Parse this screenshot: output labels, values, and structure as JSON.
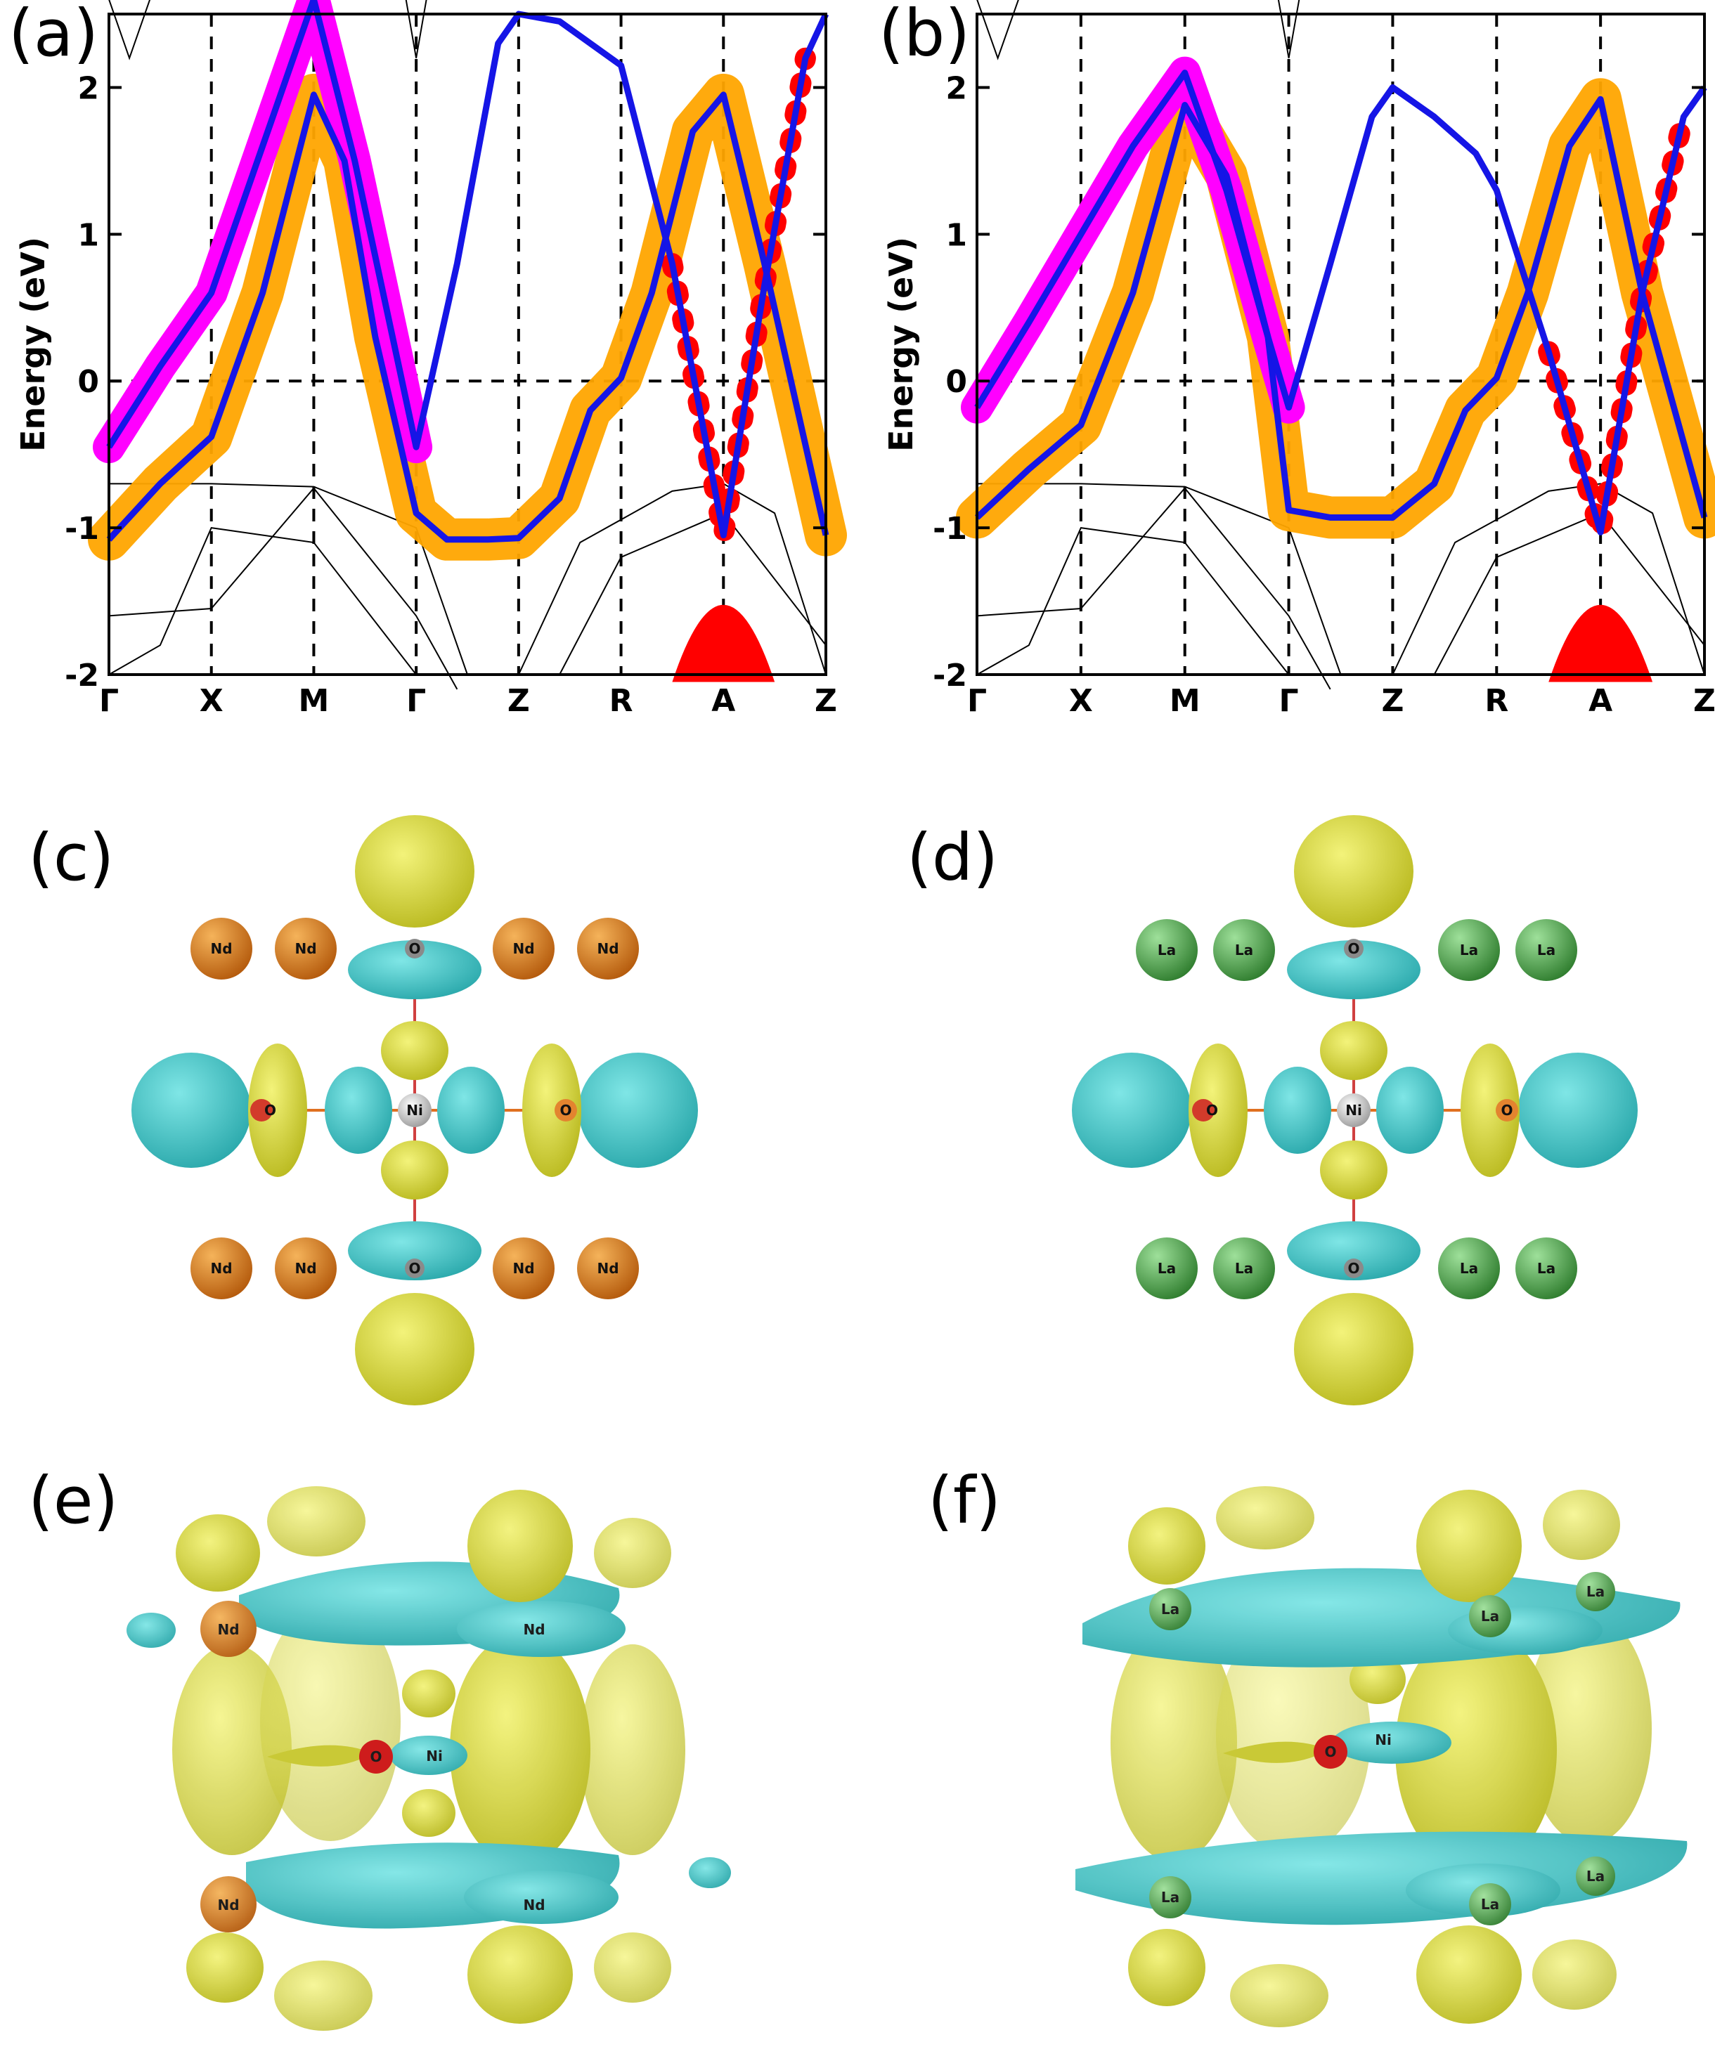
{
  "panels": {
    "a": "(a)",
    "b": "(b)",
    "c": "(c)",
    "d": "(d)",
    "e": "(e)",
    "f": "(f)"
  },
  "colors": {
    "blue": "#1515e6",
    "orange": "#ffa500",
    "magenta": "#ff00ff",
    "red": "#ff0000",
    "yellow": "#d8d835",
    "cyan": "#3fc7c9",
    "nd": "#c56a12",
    "la": "#3c8f3a"
  },
  "chart_data": [
    {
      "type": "line",
      "panel": "a",
      "ylabel": "Energy (eV)",
      "ylim": [
        -2,
        2.5
      ],
      "yticks": [
        "-2",
        "-1",
        "0",
        "1",
        "2"
      ],
      "xticks": [
        "Γ",
        "X",
        "M",
        "Γ",
        "Z",
        "R",
        "A",
        "Z"
      ],
      "series": [
        {
          "x": [
            0,
            0.5,
            1,
            1.5,
            2,
            2.3,
            2.6,
            3,
            3.3,
            3.7,
            4,
            4.4,
            4.7,
            5,
            5.3,
            5.7,
            6,
            6.4,
            7
          ],
          "y": [
            -1.08,
            -0.7,
            -0.38,
            0.6,
            1.95,
            1.5,
            0.3,
            -0.9,
            -1.08,
            -1.08,
            -1.07,
            -0.8,
            -0.2,
            0.02,
            0.6,
            1.7,
            1.95,
            0.8,
            -1.05
          ]
        },
        {
          "x": [
            0,
            0.5,
            1,
            1.5,
            2,
            2.4,
            2.8,
            3,
            3.4,
            3.8,
            4,
            4.4,
            5,
            5.5,
            6,
            6.4,
            6.8,
            7
          ],
          "y": [
            -0.45,
            0.1,
            0.6,
            1.6,
            2.6,
            1.5,
            0.2,
            -0.45,
            0.8,
            2.3,
            2.5,
            2.45,
            2.15,
            0.8,
            -1.05,
            0.65,
            2.2,
            2.5
          ]
        }
      ]
    },
    {
      "type": "line",
      "panel": "b",
      "ylabel": "Energy (eV)",
      "ylim": [
        -2,
        2.5
      ],
      "yticks": [
        "-2",
        "-1",
        "0",
        "1",
        "2"
      ],
      "xticks": [
        "Γ",
        "X",
        "M",
        "Γ",
        "Z",
        "R",
        "A",
        "Z"
      ],
      "series": [
        {
          "x": [
            0,
            0.5,
            1,
            1.5,
            2,
            2.4,
            2.8,
            3,
            3.4,
            3.8,
            4,
            4.4,
            4.7,
            5,
            5.3,
            5.7,
            6,
            6.4,
            7
          ],
          "y": [
            -0.93,
            -0.6,
            -0.3,
            0.6,
            1.88,
            1.4,
            0.3,
            -0.88,
            -0.93,
            -0.93,
            -0.93,
            -0.7,
            -0.2,
            0.02,
            0.6,
            1.6,
            1.92,
            0.6,
            -0.93
          ]
        },
        {
          "x": [
            0,
            0.5,
            1,
            1.5,
            2,
            2.4,
            2.8,
            3,
            3.4,
            3.8,
            4,
            4.4,
            4.8,
            5,
            5.5,
            6,
            6.4,
            6.8,
            7
          ],
          "y": [
            -0.18,
            0.4,
            1.0,
            1.6,
            2.1,
            1.3,
            0.3,
            -0.18,
            0.8,
            1.8,
            2.0,
            1.8,
            1.55,
            1.3,
            0.2,
            -1.03,
            0.6,
            1.8,
            2.0
          ]
        }
      ]
    }
  ],
  "structures": {
    "c": {
      "nd_label": "Nd",
      "o_label": "O",
      "ni_label": "Ni"
    },
    "d": {
      "la_label": "La",
      "o_label": "O",
      "ni_label": "Ni"
    },
    "e": {
      "nd_label": "Nd",
      "o_label": "O",
      "ni_label": "Ni"
    },
    "f": {
      "la_label": "La",
      "o_label": "O",
      "ni_label": "Ni"
    }
  }
}
